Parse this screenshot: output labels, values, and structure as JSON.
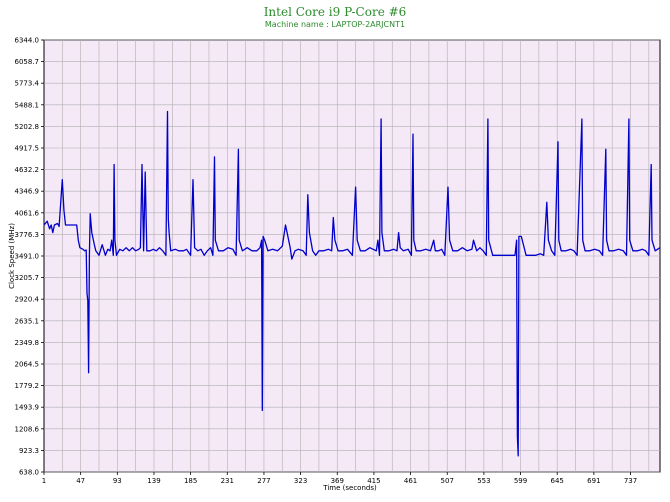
{
  "chart_data": {
    "type": "line",
    "title": "Intel Core i9 P-Core #6",
    "subtitle": "Machine name : LAPTOP-2ARJCNT1",
    "xlabel": "Time (seconds)",
    "ylabel": "Clock Speed (MHz)",
    "xlim": [
      1,
      774
    ],
    "ylim": [
      638.0,
      6344.0
    ],
    "grid": true,
    "x_ticks": [
      "1",
      "47",
      "93",
      "139",
      "185",
      "231",
      "277",
      "323",
      "369",
      "415",
      "461",
      "507",
      "553",
      "599",
      "645",
      "691",
      "737"
    ],
    "y_ticks": [
      "638.0",
      "923.3",
      "1208.6",
      "1493.9",
      "1779.2",
      "2064.5",
      "2349.8",
      "2635.1",
      "2920.4",
      "3205.7",
      "3491.0",
      "3776.3",
      "4061.6",
      "4346.9",
      "4632.2",
      "4917.5",
      "5202.8",
      "5488.1",
      "5773.4",
      "6058.7",
      "6344.0"
    ],
    "series": [
      {
        "name": "",
        "color": "#0000cc",
        "points": [
          [
            1,
            3900
          ],
          [
            5,
            3950
          ],
          [
            8,
            3850
          ],
          [
            10,
            3900
          ],
          [
            12,
            3800
          ],
          [
            14,
            3900
          ],
          [
            18,
            3920
          ],
          [
            20,
            3880
          ],
          [
            24,
            4500
          ],
          [
            26,
            4100
          ],
          [
            28,
            3900
          ],
          [
            32,
            3900
          ],
          [
            36,
            3900
          ],
          [
            42,
            3900
          ],
          [
            44,
            3700
          ],
          [
            46,
            3600
          ],
          [
            50,
            3580
          ],
          [
            52,
            3560
          ],
          [
            54,
            3570
          ],
          [
            55,
            3000
          ],
          [
            56,
            2900
          ],
          [
            57,
            1950
          ],
          [
            58,
            3500
          ],
          [
            59,
            4050
          ],
          [
            61,
            3800
          ],
          [
            64,
            3650
          ],
          [
            66,
            3560
          ],
          [
            70,
            3500
          ],
          [
            74,
            3640
          ],
          [
            78,
            3500
          ],
          [
            81,
            3580
          ],
          [
            84,
            3560
          ],
          [
            86,
            3700
          ],
          [
            88,
            3500
          ],
          [
            89,
            4700
          ],
          [
            90,
            3700
          ],
          [
            92,
            3500
          ],
          [
            96,
            3580
          ],
          [
            100,
            3560
          ],
          [
            104,
            3600
          ],
          [
            108,
            3560
          ],
          [
            112,
            3600
          ],
          [
            116,
            3560
          ],
          [
            120,
            3580
          ],
          [
            122,
            3600
          ],
          [
            124,
            4700
          ],
          [
            126,
            3560
          ],
          [
            128,
            4600
          ],
          [
            130,
            3560
          ],
          [
            134,
            3560
          ],
          [
            138,
            3580
          ],
          [
            142,
            3560
          ],
          [
            146,
            3600
          ],
          [
            150,
            3560
          ],
          [
            154,
            3500
          ],
          [
            156,
            5400
          ],
          [
            157,
            3980
          ],
          [
            158,
            3800
          ],
          [
            160,
            3560
          ],
          [
            166,
            3580
          ],
          [
            170,
            3560
          ],
          [
            176,
            3560
          ],
          [
            180,
            3580
          ],
          [
            185,
            3500
          ],
          [
            188,
            4500
          ],
          [
            190,
            3600
          ],
          [
            194,
            3560
          ],
          [
            198,
            3580
          ],
          [
            202,
            3500
          ],
          [
            206,
            3560
          ],
          [
            210,
            3600
          ],
          [
            213,
            3500
          ],
          [
            215,
            4800
          ],
          [
            216,
            3700
          ],
          [
            220,
            3560
          ],
          [
            226,
            3560
          ],
          [
            232,
            3600
          ],
          [
            238,
            3580
          ],
          [
            242,
            3500
          ],
          [
            245,
            4900
          ],
          [
            246,
            3700
          ],
          [
            250,
            3560
          ],
          [
            256,
            3600
          ],
          [
            262,
            3560
          ],
          [
            268,
            3560
          ],
          [
            272,
            3600
          ],
          [
            274,
            3700
          ],
          [
            275,
            1450
          ],
          [
            276,
            3750
          ],
          [
            278,
            3700
          ],
          [
            282,
            3560
          ],
          [
            288,
            3580
          ],
          [
            294,
            3560
          ],
          [
            300,
            3620
          ],
          [
            304,
            3900
          ],
          [
            306,
            3800
          ],
          [
            310,
            3600
          ],
          [
            312,
            3450
          ],
          [
            316,
            3560
          ],
          [
            320,
            3580
          ],
          [
            326,
            3560
          ],
          [
            330,
            3500
          ],
          [
            332,
            4300
          ],
          [
            334,
            3800
          ],
          [
            338,
            3560
          ],
          [
            342,
            3500
          ],
          [
            346,
            3560
          ],
          [
            352,
            3560
          ],
          [
            358,
            3580
          ],
          [
            362,
            3560
          ],
          [
            364,
            4000
          ],
          [
            366,
            3700
          ],
          [
            370,
            3560
          ],
          [
            376,
            3560
          ],
          [
            382,
            3580
          ],
          [
            388,
            3500
          ],
          [
            392,
            4400
          ],
          [
            394,
            3700
          ],
          [
            398,
            3560
          ],
          [
            404,
            3560
          ],
          [
            410,
            3600
          ],
          [
            414,
            3580
          ],
          [
            418,
            3560
          ],
          [
            420,
            3700
          ],
          [
            422,
            3500
          ],
          [
            424,
            5300
          ],
          [
            425,
            3800
          ],
          [
            428,
            3560
          ],
          [
            434,
            3560
          ],
          [
            440,
            3580
          ],
          [
            444,
            3560
          ],
          [
            446,
            3800
          ],
          [
            448,
            3600
          ],
          [
            452,
            3560
          ],
          [
            458,
            3580
          ],
          [
            462,
            3500
          ],
          [
            464,
            5100
          ],
          [
            465,
            3700
          ],
          [
            468,
            3560
          ],
          [
            474,
            3560
          ],
          [
            480,
            3580
          ],
          [
            486,
            3560
          ],
          [
            490,
            3700
          ],
          [
            492,
            3560
          ],
          [
            496,
            3560
          ],
          [
            500,
            3580
          ],
          [
            504,
            3500
          ],
          [
            508,
            4400
          ],
          [
            510,
            3700
          ],
          [
            514,
            3560
          ],
          [
            520,
            3560
          ],
          [
            526,
            3600
          ],
          [
            532,
            3560
          ],
          [
            538,
            3580
          ],
          [
            540,
            3700
          ],
          [
            544,
            3560
          ],
          [
            548,
            3600
          ],
          [
            552,
            3560
          ],
          [
            556,
            3500
          ],
          [
            558,
            5300
          ],
          [
            559,
            3700
          ],
          [
            564,
            3500
          ],
          [
            570,
            3500
          ],
          [
            576,
            3500
          ],
          [
            582,
            3500
          ],
          [
            588,
            3500
          ],
          [
            592,
            3500
          ],
          [
            594,
            3700
          ],
          [
            595,
            1100
          ],
          [
            596,
            850
          ],
          [
            597,
            3750
          ],
          [
            600,
            3750
          ],
          [
            606,
            3500
          ],
          [
            612,
            3500
          ],
          [
            618,
            3500
          ],
          [
            624,
            3520
          ],
          [
            628,
            3500
          ],
          [
            632,
            4200
          ],
          [
            634,
            3700
          ],
          [
            638,
            3560
          ],
          [
            642,
            3500
          ],
          [
            646,
            5000
          ],
          [
            647,
            3700
          ],
          [
            650,
            3560
          ],
          [
            656,
            3560
          ],
          [
            662,
            3580
          ],
          [
            666,
            3560
          ],
          [
            670,
            3500
          ],
          [
            676,
            5300
          ],
          [
            677,
            3700
          ],
          [
            680,
            3560
          ],
          [
            686,
            3560
          ],
          [
            692,
            3580
          ],
          [
            698,
            3560
          ],
          [
            702,
            3500
          ],
          [
            706,
            4900
          ],
          [
            707,
            3700
          ],
          [
            710,
            3560
          ],
          [
            716,
            3560
          ],
          [
            722,
            3580
          ],
          [
            728,
            3560
          ],
          [
            732,
            3500
          ],
          [
            735,
            5300
          ],
          [
            736,
            3700
          ],
          [
            740,
            3560
          ],
          [
            746,
            3560
          ],
          [
            752,
            3580
          ],
          [
            756,
            3560
          ],
          [
            760,
            3500
          ],
          [
            763,
            4700
          ],
          [
            764,
            3700
          ],
          [
            768,
            3560
          ],
          [
            774,
            3600
          ]
        ]
      }
    ]
  }
}
